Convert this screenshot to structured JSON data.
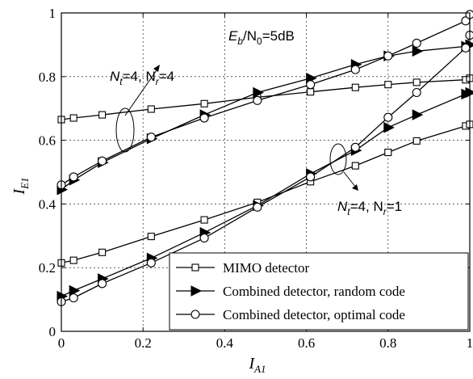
{
  "chart_data": {
    "type": "line",
    "title": "",
    "xlabel": {
      "main": "I",
      "sub": "A1"
    },
    "ylabel": {
      "main": "I",
      "sub": "E1"
    },
    "xlim": [
      0,
      1
    ],
    "ylim": [
      0,
      1
    ],
    "x_ticks": [
      "0",
      "0.2",
      "0.4",
      "0.6",
      "0.8",
      "1"
    ],
    "y_ticks": [
      "0",
      "0.2",
      "0.4",
      "0.6",
      "0.8",
      "1"
    ],
    "grid": true,
    "legend_position": "bottom-right",
    "annotations": {
      "snr": {
        "parts": [
          "E",
          "b",
          "/N",
          "0",
          "=5dB"
        ]
      },
      "group_44": {
        "parts": [
          "N",
          "t",
          "=4, N",
          "r",
          "=4"
        ]
      },
      "group_41": {
        "parts": [
          "N",
          "t",
          "=4, N",
          "r",
          "=1"
        ]
      }
    },
    "series": [
      {
        "name": "MIMO detector",
        "marker": "square",
        "group": "Nt=4, Nr=4",
        "x": [
          0,
          0.03,
          0.1,
          0.22,
          0.35,
          0.48,
          0.61,
          0.72,
          0.8,
          0.87,
          0.99,
          1.0
        ],
        "y": [
          0.665,
          0.67,
          0.68,
          0.698,
          0.715,
          0.735,
          0.752,
          0.766,
          0.775,
          0.782,
          0.79,
          0.795
        ]
      },
      {
        "name": "Combined detector, random code",
        "marker": "triangle-right",
        "group": "Nt=4, Nr=4",
        "x": [
          0,
          0.03,
          0.1,
          0.22,
          0.35,
          0.48,
          0.61,
          0.72,
          0.8,
          0.87,
          0.99,
          1.0
        ],
        "y": [
          0.445,
          0.475,
          0.53,
          0.605,
          0.68,
          0.75,
          0.795,
          0.838,
          0.865,
          0.88,
          0.895,
          0.9
        ]
      },
      {
        "name": "Combined detector, optimal code",
        "marker": "circle",
        "group": "Nt=4, Nr=4",
        "x": [
          0,
          0.03,
          0.1,
          0.22,
          0.35,
          0.48,
          0.61,
          0.72,
          0.8,
          0.87,
          0.99,
          1.0
        ],
        "y": [
          0.46,
          0.485,
          0.535,
          0.61,
          0.67,
          0.725,
          0.775,
          0.822,
          0.865,
          0.905,
          0.975,
          0.995
        ]
      },
      {
        "name": "MIMO detector",
        "marker": "square",
        "group": "Nt=4, Nr=1",
        "x": [
          0,
          0.03,
          0.1,
          0.22,
          0.35,
          0.48,
          0.61,
          0.72,
          0.8,
          0.87,
          0.99,
          1.0
        ],
        "y": [
          0.215,
          0.223,
          0.248,
          0.298,
          0.35,
          0.405,
          0.47,
          0.52,
          0.562,
          0.598,
          0.645,
          0.65
        ]
      },
      {
        "name": "Combined detector, random code",
        "marker": "triangle-right",
        "group": "Nt=4, Nr=1",
        "x": [
          0,
          0.03,
          0.1,
          0.22,
          0.35,
          0.48,
          0.61,
          0.72,
          0.8,
          0.87,
          0.99,
          1.0
        ],
        "y": [
          0.11,
          0.128,
          0.165,
          0.23,
          0.31,
          0.395,
          0.495,
          0.568,
          0.64,
          0.68,
          0.745,
          0.75
        ]
      },
      {
        "name": "Combined detector, optimal code",
        "marker": "circle",
        "group": "Nt=4, Nr=1",
        "x": [
          0,
          0.03,
          0.1,
          0.22,
          0.35,
          0.48,
          0.61,
          0.72,
          0.8,
          0.87,
          0.99,
          1.0
        ],
        "y": [
          0.093,
          0.105,
          0.15,
          0.215,
          0.293,
          0.39,
          0.485,
          0.578,
          0.672,
          0.75,
          0.89,
          0.93
        ]
      }
    ],
    "legend": [
      {
        "label": "MIMO detector",
        "marker": "square"
      },
      {
        "label": "Combined detector, random code",
        "marker": "triangle-right"
      },
      {
        "label": "Combined detector, optimal code",
        "marker": "circle"
      }
    ]
  }
}
